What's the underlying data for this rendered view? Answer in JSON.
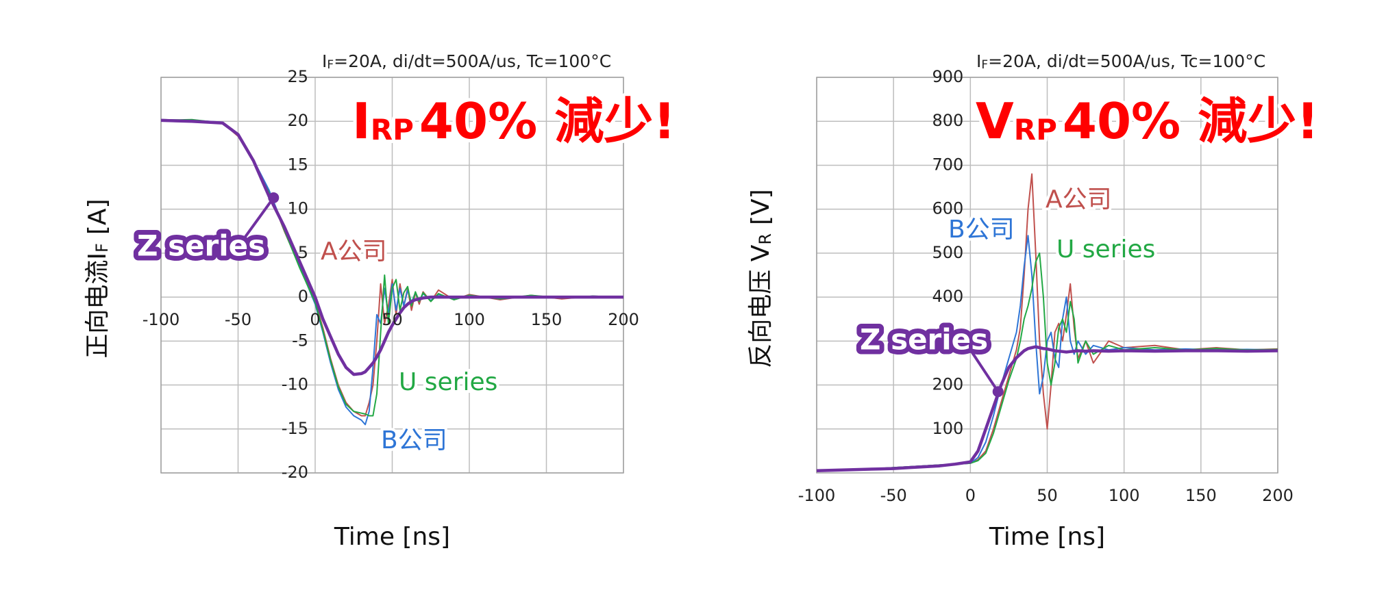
{
  "chart_data": [
    {
      "type": "line",
      "subtitle": {
        "symbol": "I",
        "subscript": "F",
        "text": "=20A, di/dt=500A/us, Tc=100°C"
      },
      "headline": {
        "symbol": "I",
        "subscript": "RP",
        "text": "40% 減少!"
      },
      "x_label": "Time [ns]",
      "y_label": {
        "text": "正向电流I",
        "subscript": "F",
        "unit": "[A]"
      },
      "xlim": [
        -100,
        200
      ],
      "ylim": [
        -20,
        25
      ],
      "xticks": [
        -100,
        -50,
        0,
        50,
        100,
        150,
        200
      ],
      "yticks": [
        -20,
        -15,
        -10,
        -5,
        0,
        5,
        10,
        15,
        20,
        25
      ],
      "grid": true,
      "x": [
        -100,
        -80,
        -60,
        -50,
        -40,
        -30,
        -20,
        -10,
        0,
        5,
        10,
        15,
        20,
        25,
        30,
        32.5,
        35,
        37.5,
        40,
        42.5,
        45,
        47.5,
        50,
        52.5,
        55,
        57.5,
        60,
        62.5,
        65,
        67.5,
        70,
        75,
        80,
        90,
        100,
        120,
        140,
        160,
        180,
        200
      ],
      "series": [
        {
          "name": "A公司",
          "color": "#c0504d",
          "values": [
            20.2,
            20.1,
            19.8,
            18.3,
            15.5,
            12,
            7.5,
            3.5,
            -0.5,
            -3.5,
            -7,
            -10,
            -12,
            -13,
            -13.5,
            -13.5,
            -12,
            -10,
            -5,
            1.5,
            -3,
            -1,
            2,
            -2,
            1.5,
            -1,
            1,
            -1.5,
            0.5,
            -0.8,
            0.6,
            -0.5,
            0.8,
            -0.3,
            0.3,
            -0.3,
            0.2,
            -0.2,
            0.1,
            0
          ]
        },
        {
          "name": "B公司",
          "color": "#2e75d6",
          "values": [
            20.2,
            20.1,
            19.9,
            18.5,
            15.6,
            12.2,
            7.8,
            3.5,
            -0.8,
            -4,
            -7.5,
            -10.5,
            -12.5,
            -13.5,
            -14,
            -14.5,
            -13,
            -8,
            -2,
            -3,
            1,
            -2,
            1.5,
            -1.5,
            1,
            -1,
            0.8,
            -0.6,
            0.5,
            -0.5,
            0.4,
            -0.4,
            0.3,
            -0.2,
            0.2,
            -0.2,
            0.1,
            -0.1,
            0.1,
            0
          ]
        },
        {
          "name": "U series",
          "color": "#22a844",
          "values": [
            20.1,
            20.2,
            19.8,
            18.4,
            15.4,
            11.9,
            7.6,
            3.3,
            -0.6,
            -3.8,
            -7.2,
            -10.2,
            -12.2,
            -13,
            -13.2,
            -13.3,
            -13.5,
            -13.5,
            -11,
            -4,
            2.5,
            -3,
            1,
            2,
            -1.5,
            0.5,
            1.2,
            -1,
            0.6,
            -0.5,
            0.5,
            -0.5,
            0.4,
            -0.3,
            0.2,
            -0.2,
            0.2,
            -0.1,
            0.1,
            0
          ]
        },
        {
          "name": "Z series",
          "color": "#7030a0",
          "values": [
            20.1,
            20,
            19.8,
            18.5,
            15.5,
            11.5,
            8,
            4,
            0,
            -2.5,
            -4.5,
            -6.5,
            -8,
            -8.8,
            -8.7,
            -8.5,
            -8,
            -7.5,
            -6.8,
            -6,
            -5,
            -4,
            -3.2,
            -2.5,
            -1.8,
            -1.2,
            -0.8,
            -0.5,
            -0.3,
            -0.2,
            -0.1,
            0,
            0,
            0,
            0,
            0,
            0,
            0,
            0,
            0
          ]
        }
      ]
    },
    {
      "type": "line",
      "subtitle": {
        "symbol": "I",
        "subscript": "F",
        "text": "=20A, di/dt=500A/us, Tc=100°C"
      },
      "headline": {
        "symbol": "V",
        "subscript": "RP",
        "text": "40% 減少!"
      },
      "x_label": "Time [ns]",
      "y_label": {
        "text": "反向电压 V",
        "subscript": "R",
        "unit": "[V]"
      },
      "xlim": [
        -100,
        200
      ],
      "ylim": [
        0,
        900
      ],
      "xticks": [
        -100,
        -50,
        0,
        50,
        100,
        150,
        200
      ],
      "yticks": [
        100,
        200,
        300,
        400,
        500,
        600,
        700,
        800,
        900
      ],
      "grid": true,
      "x": [
        -100,
        -80,
        -60,
        -50,
        -40,
        -30,
        -20,
        -10,
        0,
        5,
        10,
        15,
        20,
        25,
        30,
        32.5,
        35,
        37.5,
        40,
        42.5,
        45,
        47.5,
        50,
        52.5,
        55,
        57.5,
        60,
        62.5,
        65,
        67.5,
        70,
        75,
        80,
        90,
        100,
        120,
        140,
        160,
        180,
        200
      ],
      "series": [
        {
          "name": "A公司",
          "color": "#c0504d",
          "values": [
            5,
            8,
            10,
            12,
            14,
            16,
            18,
            20,
            22,
            30,
            50,
            100,
            160,
            220,
            280,
            330,
            450,
            600,
            680,
            500,
            300,
            180,
            100,
            200,
            320,
            340,
            300,
            360,
            430,
            330,
            260,
            300,
            250,
            300,
            285,
            290,
            280,
            285,
            280,
            282
          ]
        },
        {
          "name": "B公司",
          "color": "#2e75d6",
          "values": [
            5,
            8,
            10,
            12,
            14,
            16,
            18,
            20,
            22,
            35,
            70,
            130,
            200,
            260,
            320,
            380,
            470,
            540,
            450,
            300,
            180,
            220,
            300,
            320,
            260,
            240,
            350,
            400,
            300,
            270,
            300,
            270,
            290,
            280,
            285,
            280,
            282,
            280,
            281,
            280
          ]
        },
        {
          "name": "U series",
          "color": "#22a844",
          "values": [
            5,
            8,
            10,
            12,
            14,
            16,
            18,
            20,
            22,
            28,
            45,
            90,
            150,
            210,
            260,
            300,
            350,
            380,
            420,
            480,
            500,
            400,
            250,
            200,
            250,
            330,
            350,
            320,
            390,
            350,
            250,
            300,
            270,
            290,
            280,
            285,
            280,
            283,
            280,
            281
          ]
        },
        {
          "name": "Z series",
          "color": "#7030a0",
          "values": [
            5,
            7,
            9,
            10,
            12,
            14,
            16,
            20,
            25,
            50,
            100,
            150,
            200,
            240,
            262,
            270,
            278,
            283,
            285,
            287,
            285,
            283,
            282,
            280,
            278,
            277,
            276,
            275,
            276,
            277,
            278,
            277,
            278,
            277,
            278,
            277,
            278,
            278,
            277,
            278
          ]
        }
      ]
    }
  ]
}
